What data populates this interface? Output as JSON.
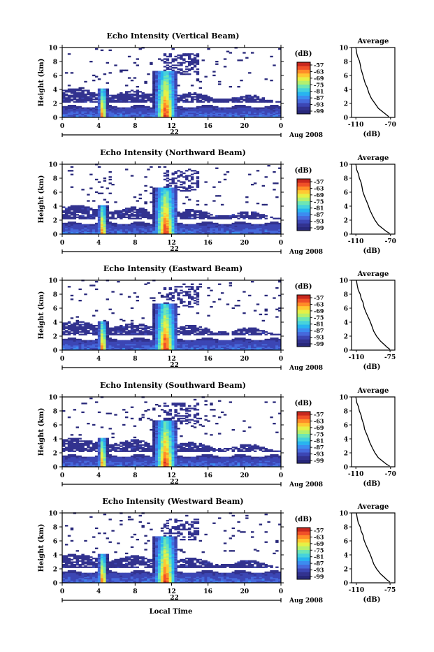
{
  "common": {
    "y_label": "Height (km)",
    "x_bottom_label": "Local Time",
    "date_day": "22",
    "date_month_year": "Aug 2008",
    "x_ticks": [
      "0",
      "4",
      "8",
      "12",
      "16",
      "20",
      "0"
    ],
    "y_ticks": [
      "0",
      "2",
      "4",
      "6",
      "8",
      "10"
    ],
    "cbar_unit": "(dB)",
    "cbar_ticks": [
      "-57",
      "-63",
      "-69",
      "-75",
      "-81",
      "-87",
      "-93",
      "-99"
    ],
    "avg_title": "Average",
    "avg_xlabel": "(dB)",
    "colors": [
      "#28287a",
      "#32328f",
      "#3c46b4",
      "#4669dc",
      "#3c8cf0",
      "#28b4f0",
      "#46d2dc",
      "#6ee6b4",
      "#b4f06e",
      "#e6f046",
      "#ffc832",
      "#ff8c28",
      "#f05028",
      "#c8281e"
    ]
  },
  "panels": [
    {
      "title": "Echo Intensity (Vertical Beam)",
      "avg_xticks": [
        "-110",
        "-70"
      ]
    },
    {
      "title": "Echo Intensity (Northward Beam)",
      "avg_xticks": [
        "-110",
        "-70"
      ]
    },
    {
      "title": "Echo Intensity (Eastward Beam)",
      "avg_xticks": [
        "-110",
        "-75"
      ]
    },
    {
      "title": "Echo Intensity (Southward Beam)",
      "avg_xticks": [
        "-110",
        "-70"
      ]
    },
    {
      "title": "Echo Intensity (Westward Beam)",
      "avg_xticks": [
        "-110",
        "-75"
      ]
    }
  ],
  "chart_data": [
    {
      "type": "heatmap",
      "title": "Echo Intensity (Vertical Beam)",
      "xlabel": "",
      "ylabel": "Height (km)",
      "xlim": [
        0,
        24
      ],
      "ylim": [
        0,
        10
      ],
      "clim": [
        -99,
        -57
      ],
      "features": [
        {
          "kind": "boundary_layer",
          "top_km": 1.5,
          "dB": -95
        },
        {
          "kind": "cloud_layer",
          "bottom_km": 2.0,
          "top_km": 3.8,
          "dB": -97
        },
        {
          "kind": "column",
          "hour": 4.3,
          "top_km": 4.0,
          "peak_dB": -57
        },
        {
          "kind": "column",
          "hour": 11.2,
          "top_km": 6.5,
          "peak_dB": -57
        },
        {
          "kind": "upper_cloud",
          "hour_range": [
            11,
            15
          ],
          "km_range": [
            6,
            9
          ],
          "dB": -95
        }
      ]
    },
    {
      "type": "line",
      "title": "Average",
      "xlabel": "(dB)",
      "ylabel": "",
      "xlim": [
        -115,
        -65
      ],
      "ylim": [
        0,
        10
      ],
      "x": [
        -110,
        -109,
        -108,
        -106,
        -105,
        -104,
        -102,
        -101,
        -99,
        -97,
        -95,
        -92,
        -88,
        -84,
        -79,
        -75,
        -72
      ],
      "y": [
        10,
        9.2,
        8.7,
        8.1,
        7.6,
        6.9,
        6.1,
        5.6,
        4.8,
        4.3,
        3.5,
        2.7,
        2.0,
        1.3,
        0.8,
        0.4,
        0.1
      ]
    },
    {
      "type": "heatmap",
      "title": "Echo Intensity (Northward Beam)",
      "xlabel": "",
      "ylabel": "Height (km)",
      "xlim": [
        0,
        24
      ],
      "ylim": [
        0,
        10
      ],
      "clim": [
        -99,
        -57
      ],
      "features": [
        {
          "kind": "boundary_layer",
          "top_km": 1.5,
          "dB": -95
        },
        {
          "kind": "cloud_layer",
          "bottom_km": 2.0,
          "top_km": 3.8,
          "dB": -97
        },
        {
          "kind": "column",
          "hour": 4.3,
          "top_km": 4.0,
          "peak_dB": -57
        },
        {
          "kind": "column",
          "hour": 11.2,
          "top_km": 6.5,
          "peak_dB": -57
        }
      ]
    },
    {
      "type": "line",
      "title": "Average",
      "xlabel": "(dB)",
      "ylabel": "",
      "xlim": [
        -115,
        -65
      ],
      "ylim": [
        0,
        10
      ],
      "x": [
        -110,
        -109,
        -107,
        -106,
        -104,
        -103,
        -102,
        -100,
        -98,
        -96,
        -94,
        -91,
        -88,
        -84,
        -79,
        -75,
        -71
      ],
      "y": [
        10,
        9.2,
        8.6,
        8.0,
        7.4,
        6.8,
        6.1,
        5.4,
        4.8,
        4.2,
        3.5,
        2.7,
        2.0,
        1.3,
        0.8,
        0.4,
        0.1
      ]
    },
    {
      "type": "heatmap",
      "title": "Echo Intensity (Eastward Beam)",
      "xlabel": "",
      "ylabel": "Height (km)",
      "xlim": [
        0,
        24
      ],
      "ylim": [
        0,
        10
      ],
      "clim": [
        -99,
        -57
      ],
      "features": [
        {
          "kind": "boundary_layer",
          "top_km": 1.5,
          "dB": -95
        },
        {
          "kind": "cloud_layer",
          "bottom_km": 2.0,
          "top_km": 3.8,
          "dB": -97
        },
        {
          "kind": "column",
          "hour": 4.3,
          "top_km": 4.0,
          "peak_dB": -57
        },
        {
          "kind": "column",
          "hour": 11.2,
          "top_km": 6.5,
          "peak_dB": -57
        }
      ]
    },
    {
      "type": "line",
      "title": "Average",
      "xlabel": "(dB)",
      "ylabel": "",
      "xlim": [
        -115,
        -70
      ],
      "ylim": [
        0,
        10
      ],
      "x": [
        -110,
        -109,
        -108,
        -106,
        -105,
        -103,
        -102,
        -100,
        -98,
        -96,
        -94,
        -92,
        -89,
        -85,
        -81,
        -78,
        -75
      ],
      "y": [
        10,
        9.2,
        8.6,
        8.0,
        7.4,
        6.8,
        6.1,
        5.4,
        4.8,
        4.2,
        3.5,
        2.7,
        2.0,
        1.3,
        0.8,
        0.4,
        0.1
      ]
    },
    {
      "type": "heatmap",
      "title": "Echo Intensity (Southward Beam)",
      "xlabel": "",
      "ylabel": "Height (km)",
      "xlim": [
        0,
        24
      ],
      "ylim": [
        0,
        10
      ],
      "clim": [
        -99,
        -57
      ],
      "features": [
        {
          "kind": "boundary_layer",
          "top_km": 1.5,
          "dB": -95
        },
        {
          "kind": "cloud_layer",
          "bottom_km": 2.0,
          "top_km": 3.8,
          "dB": -97
        },
        {
          "kind": "column",
          "hour": 4.3,
          "top_km": 4.0,
          "peak_dB": -57
        },
        {
          "kind": "column",
          "hour": 11.2,
          "top_km": 6.5,
          "peak_dB": -57
        }
      ]
    },
    {
      "type": "line",
      "title": "Average",
      "xlabel": "(dB)",
      "ylabel": "",
      "xlim": [
        -115,
        -65
      ],
      "ylim": [
        0,
        10
      ],
      "x": [
        -110,
        -109,
        -107,
        -106,
        -104,
        -103,
        -101,
        -100,
        -98,
        -96,
        -94,
        -91,
        -88,
        -84,
        -79,
        -75,
        -71
      ],
      "y": [
        10,
        9.2,
        8.6,
        8.0,
        7.4,
        6.8,
        6.1,
        5.4,
        4.8,
        4.2,
        3.5,
        2.7,
        2.0,
        1.3,
        0.8,
        0.4,
        0.1
      ]
    },
    {
      "type": "heatmap",
      "title": "Echo Intensity (Westward Beam)",
      "xlabel": "Local Time",
      "ylabel": "Height (km)",
      "xlim": [
        0,
        24
      ],
      "ylim": [
        0,
        10
      ],
      "clim": [
        -99,
        -57
      ],
      "features": [
        {
          "kind": "boundary_layer",
          "top_km": 1.5,
          "dB": -95
        },
        {
          "kind": "cloud_layer",
          "bottom_km": 2.0,
          "top_km": 3.8,
          "dB": -97
        },
        {
          "kind": "column",
          "hour": 4.3,
          "top_km": 4.0,
          "peak_dB": -57
        },
        {
          "kind": "column",
          "hour": 11.2,
          "top_km": 6.5,
          "peak_dB": -57
        }
      ]
    },
    {
      "type": "line",
      "title": "Average",
      "xlabel": "(dB)",
      "ylabel": "",
      "xlim": [
        -115,
        -70
      ],
      "ylim": [
        0,
        10
      ],
      "x": [
        -110,
        -109,
        -108,
        -106,
        -105,
        -103,
        -102,
        -100,
        -98,
        -96,
        -94,
        -92,
        -89,
        -85,
        -81,
        -78,
        -75
      ],
      "y": [
        10,
        9.2,
        8.6,
        8.0,
        7.4,
        6.8,
        6.1,
        5.4,
        4.8,
        4.2,
        3.5,
        2.7,
        2.0,
        1.3,
        0.8,
        0.4,
        0.1
      ]
    }
  ]
}
